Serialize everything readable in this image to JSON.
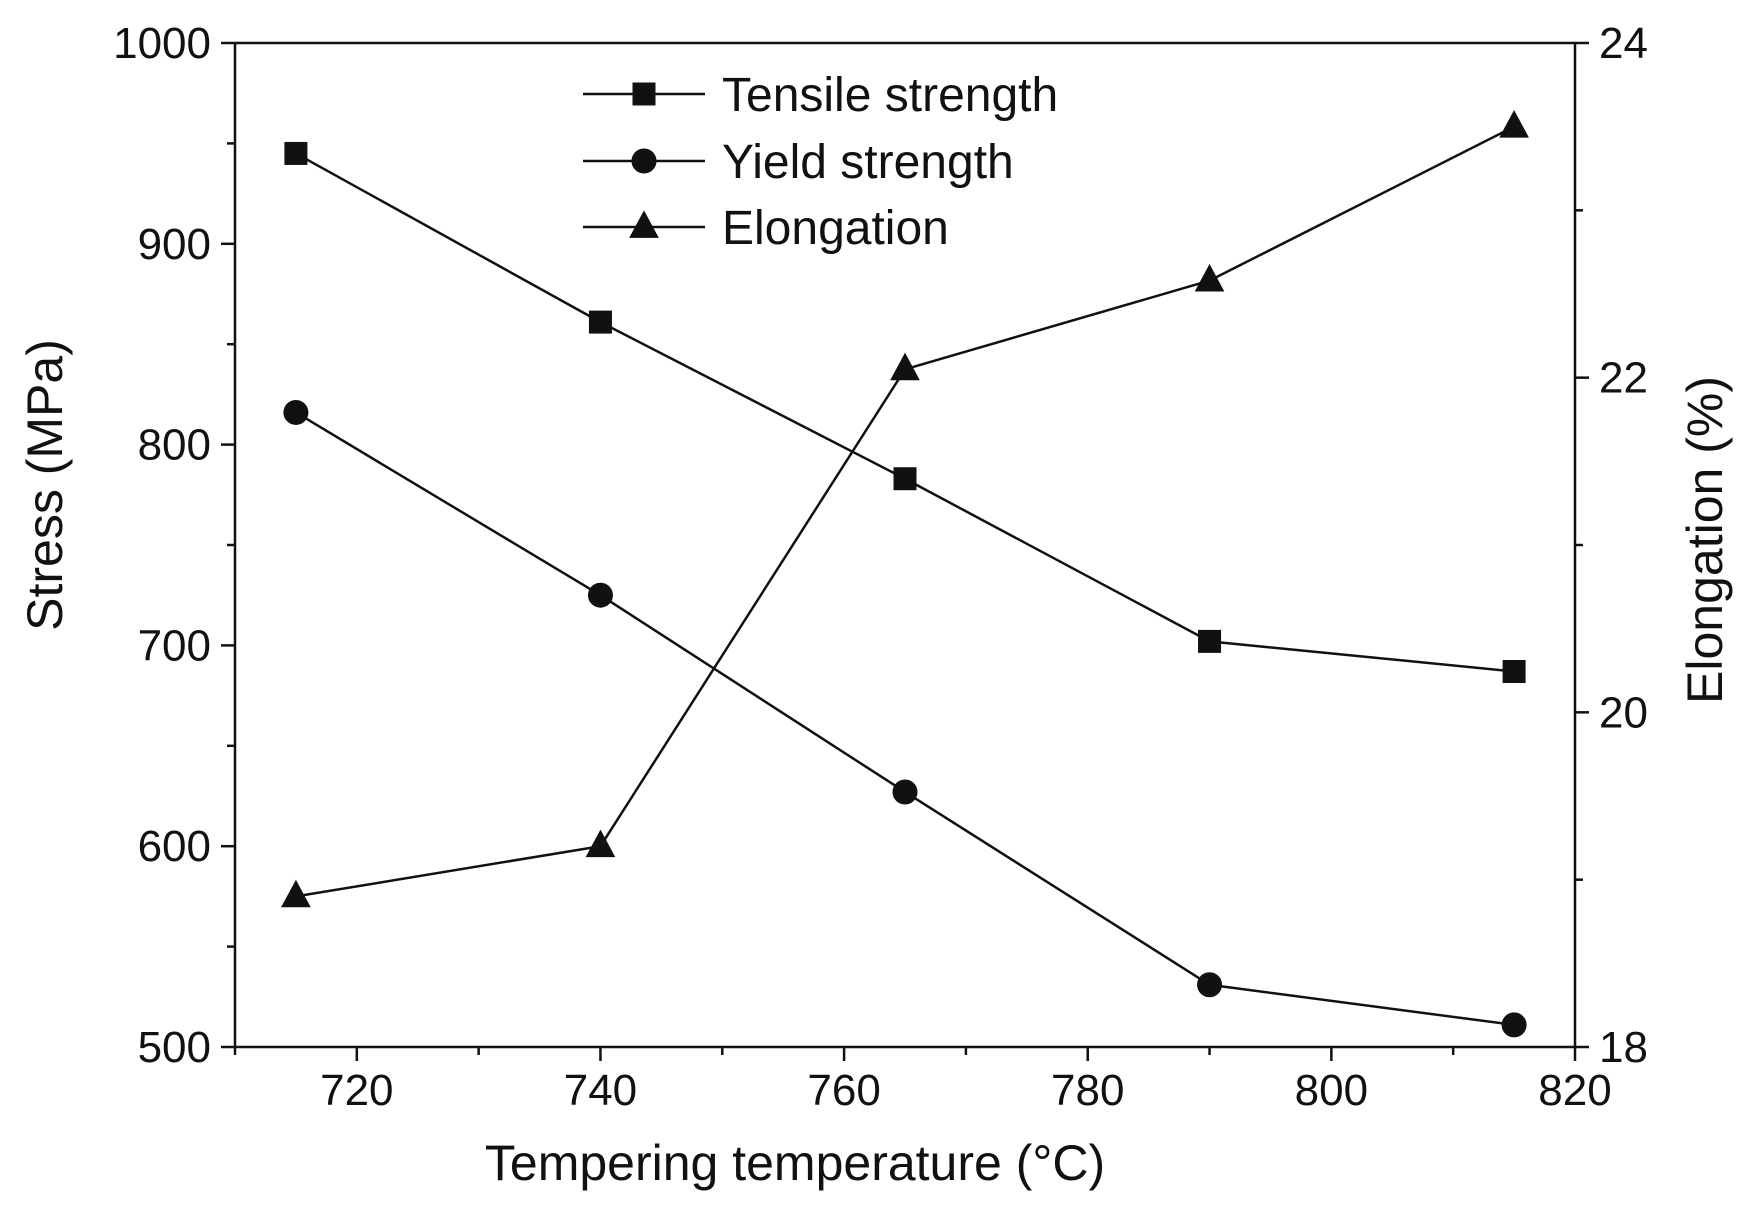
{
  "chart_data": {
    "type": "line",
    "xlabel": "Tempering temperature (°C)",
    "ylabel": "Stress (MPa)",
    "y2label": "Elongation (%)",
    "xlim": [
      710,
      820
    ],
    "ylim": [
      500,
      1000
    ],
    "y2lim": [
      18,
      24
    ],
    "x_ticks": [
      720,
      740,
      760,
      780,
      800,
      820
    ],
    "y_ticks": [
      500,
      600,
      700,
      800,
      900,
      1000
    ],
    "y2_ticks": [
      18,
      20,
      22,
      24
    ],
    "x": [
      715,
      740,
      765,
      790,
      815
    ],
    "series": [
      {
        "name": "Tensile strength",
        "axis": "left",
        "marker": "square",
        "values": [
          945,
          861,
          783,
          702,
          687
        ]
      },
      {
        "name": "Yield strength",
        "axis": "left",
        "marker": "circle",
        "values": [
          816,
          725,
          627,
          531,
          511
        ]
      },
      {
        "name": "Elongation",
        "axis": "right",
        "marker": "triangle",
        "values": [
          18.9,
          19.2,
          22.05,
          22.58,
          23.5
        ]
      }
    ],
    "legend_position": "top-center",
    "grid": false
  }
}
